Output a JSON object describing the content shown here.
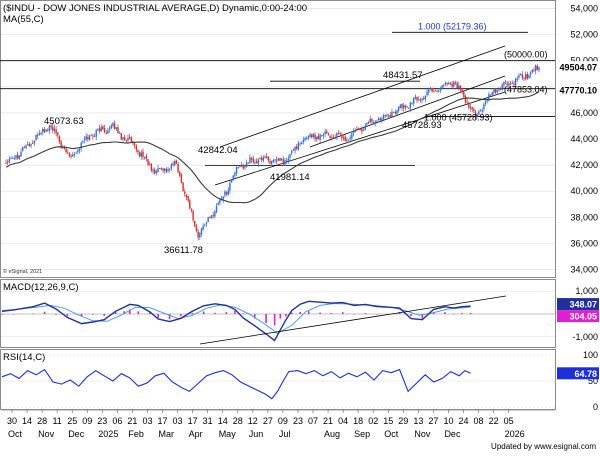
{
  "header": {
    "title": "($INDU - DOW JONES INDUSTRIAL AVERAGE,D) Dynamic,0:00-24:00",
    "ma_label": "MA(55,C)",
    "copyright": "© eSignal, 2021",
    "footer": "Updated by www.esignal.com"
  },
  "colors": {
    "up": "#2e6fd9",
    "down": "#d62b2b",
    "ma": "#3a3a3a",
    "macd_line": "#1f2f9c",
    "signal_line": "#4a9fe0",
    "histogram": "#e020d0",
    "rsi_line": "#1c2fd8",
    "trend_line": "#000000",
    "price_tag_bg": "#2e6fd9",
    "level_tag_bg": "#1e3bd0"
  },
  "chart_data": [
    {
      "type": "candlestick",
      "title": "($INDU - DOW JONES INDUSTRIAL AVERAGE,D) Dynamic,0:00-24:00",
      "indicator": "MA(55,C)",
      "y_ticks": [
        34000,
        36000,
        38000,
        40000,
        42000,
        44000,
        46000,
        48000,
        50000,
        52000,
        54000
      ],
      "ylim": [
        33500,
        54500
      ],
      "last_price": 49504.07,
      "ma_value": 47770.1,
      "anchors": [
        {
          "label": "30 Oct",
          "close": 42200
        },
        {
          "label": "21 Nov",
          "close": 43500
        },
        {
          "label": "04 Dec",
          "close": 45073.63
        },
        {
          "label": "31 Dec",
          "close": 42600
        },
        {
          "label": "23 Jan",
          "close": 44400
        },
        {
          "label": "30 Jan",
          "close": 44900
        },
        {
          "label": "24 Feb",
          "close": 43400
        },
        {
          "label": "11 Mar",
          "close": 41500
        },
        {
          "label": "31 Mar",
          "close": 42000
        },
        {
          "label": "08 Apr",
          "close": 36611.78
        },
        {
          "label": "22 Apr",
          "close": 39200
        },
        {
          "label": "12 May",
          "close": 42000
        },
        {
          "label": "02 Jun",
          "close": 42500
        },
        {
          "label": "16 Jun",
          "close": 42200
        },
        {
          "label": "30 Jun",
          "close": 44100
        },
        {
          "label": "14 Jul",
          "close": 44400
        },
        {
          "label": "04 Aug",
          "close": 44000
        },
        {
          "label": "25 Aug",
          "close": 45200
        },
        {
          "label": "15 Sep",
          "close": 46000
        },
        {
          "label": "06 Oct",
          "close": 46700
        },
        {
          "label": "27 Oct",
          "close": 47700
        },
        {
          "label": "12 Nov",
          "close": 48431.57
        },
        {
          "label": "20 Nov",
          "close": 45728.93
        },
        {
          "label": "08 Dec",
          "close": 47800
        },
        {
          "label": "22 Dec",
          "close": 48500
        },
        {
          "label": "05 Jan",
          "close": 49504.07
        }
      ],
      "annotations": [
        {
          "text": "45073.63",
          "value": 45073.63
        },
        {
          "text": "42842.04",
          "value": 42842.04
        },
        {
          "text": "41981.14",
          "value": 41981.14
        },
        {
          "text": "36611.78",
          "value": 36611.78
        },
        {
          "text": "48431.57",
          "value": 48431.57
        },
        {
          "text": "45728.93",
          "value": 45728.93
        }
      ],
      "levels": [
        {
          "text": "1.000 (52179.36)",
          "value": 52179.36
        },
        {
          "text": "(50000.00)",
          "value": 50000.0
        },
        {
          "text": "(47853.04)",
          "value": 47853.04
        },
        {
          "text": "1.000 (45728.93)",
          "value": 45728.93
        }
      ],
      "value_tags": [
        "49504.07",
        "47770.10"
      ]
    },
    {
      "type": "line",
      "title": "MACD(12,26,9,C)",
      "y_ticks": [
        1000,
        -1000
      ],
      "y_tick_labels": [
        "1,000",
        "-1,000"
      ],
      "ylim": [
        -1450,
        1450
      ],
      "macd_value": 348.07,
      "signal_value": 304.0,
      "value_tags": [
        "348.07",
        "304.05"
      ],
      "series": [
        {
          "name": "MACD",
          "x": [
            0,
            8,
            22,
            30,
            38,
            46,
            56,
            64,
            72,
            80,
            86,
            90,
            96,
            104,
            110,
            118,
            126,
            134,
            142,
            150,
            158,
            164,
            170,
            178,
            186,
            192,
            196,
            200,
            204,
            210,
            216,
            224,
            232,
            240,
            248,
            256,
            264,
            272,
            280,
            288,
            296,
            304,
            312,
            318,
            324,
            330
          ],
          "values": [
            120,
            180,
            320,
            480,
            220,
            -150,
            -420,
            -350,
            -250,
            120,
            300,
            420,
            380,
            100,
            -220,
            -330,
            -190,
            120,
            360,
            450,
            380,
            200,
            -180,
            -520,
            -880,
            -1170,
            -700,
            -250,
            150,
            430,
            560,
            520,
            480,
            500,
            380,
            420,
            330,
            300,
            260,
            -200,
            -250,
            200,
            320,
            260,
            320,
            348
          ]
        },
        {
          "name": "Signal",
          "x": [
            0,
            10,
            24,
            34,
            44,
            54,
            64,
            74,
            84,
            94,
            104,
            114,
            124,
            134,
            144,
            154,
            164,
            174,
            184,
            194,
            204,
            214,
            224,
            234,
            244,
            254,
            264,
            274,
            284,
            294,
            304,
            314,
            324,
            330
          ],
          "values": [
            150,
            200,
            300,
            380,
            250,
            -50,
            -300,
            -320,
            -50,
            300,
            280,
            40,
            -200,
            -60,
            250,
            400,
            300,
            0,
            -400,
            -850,
            -500,
            100,
            380,
            460,
            440,
            400,
            360,
            300,
            150,
            -60,
            60,
            220,
            270,
            304
          ]
        },
        {
          "name": "Histogram",
          "x": [
            0,
            8,
            22,
            30,
            38,
            46,
            56,
            64,
            72,
            80,
            86,
            90,
            96,
            104,
            110,
            118,
            126,
            134,
            142,
            150,
            158,
            164,
            170,
            178,
            186,
            192,
            196,
            200,
            204,
            210,
            216,
            224,
            232,
            240,
            248,
            256,
            264,
            272,
            280,
            288,
            296,
            304,
            312,
            318,
            324,
            330
          ],
          "values": [
            -30,
            -20,
            20,
            100,
            -30,
            -100,
            -120,
            -30,
            -80,
            100,
            120,
            200,
            120,
            60,
            -170,
            -230,
            -100,
            50,
            110,
            50,
            80,
            150,
            30,
            -200,
            -400,
            -500,
            -200,
            -100,
            60,
            90,
            120,
            60,
            40,
            80,
            -20,
            40,
            0,
            10,
            80,
            -100,
            -200,
            60,
            80,
            10,
            40,
            44
          ]
        }
      ]
    },
    {
      "type": "line",
      "title": "RSI(14,C)",
      "y_ticks": [
        100,
        50,
        0
      ],
      "ylim": [
        0,
        100
      ],
      "last_value": 64.78,
      "series": [
        {
          "name": "RSI",
          "x": [
            0,
            6,
            12,
            18,
            24,
            30,
            36,
            42,
            48,
            54,
            60,
            66,
            72,
            78,
            84,
            90,
            96,
            102,
            108,
            114,
            120,
            126,
            132,
            138,
            144,
            150,
            156,
            162,
            168,
            174,
            180,
            186,
            190,
            194,
            198,
            202,
            208,
            214,
            220,
            226,
            232,
            238,
            244,
            250,
            256,
            262,
            268,
            274,
            280,
            286,
            292,
            298,
            304,
            310,
            316,
            322,
            326,
            330
          ],
          "values": [
            58,
            64,
            55,
            70,
            62,
            72,
            48,
            44,
            52,
            40,
            58,
            70,
            60,
            50,
            64,
            56,
            40,
            46,
            60,
            65,
            48,
            38,
            30,
            45,
            60,
            66,
            70,
            62,
            48,
            40,
            32,
            24,
            16,
            30,
            50,
            68,
            70,
            64,
            70,
            60,
            68,
            56,
            65,
            58,
            67,
            52,
            70,
            66,
            72,
            30,
            46,
            62,
            48,
            55,
            68,
            60,
            70,
            64.78
          ]
        }
      ]
    }
  ],
  "x_axis": {
    "days": [
      "30",
      "14",
      "28",
      "11",
      "25",
      "09",
      "23",
      "06",
      "21",
      "03",
      "17",
      "03",
      "17",
      "31",
      "14",
      "28",
      "12",
      "27",
      "09",
      "23",
      "07",
      "21",
      "04",
      "18",
      "02",
      "15",
      "29",
      "13",
      "27",
      "10",
      "24",
      "08",
      "22",
      "05"
    ],
    "months": [
      "Oct",
      "Nov",
      "Dec",
      "2025",
      "Feb",
      "Mar",
      "Apr",
      "May",
      "Jun",
      "Jul",
      "Aug",
      "Sep",
      "Oct",
      "Nov",
      "Dec",
      "2026"
    ]
  }
}
